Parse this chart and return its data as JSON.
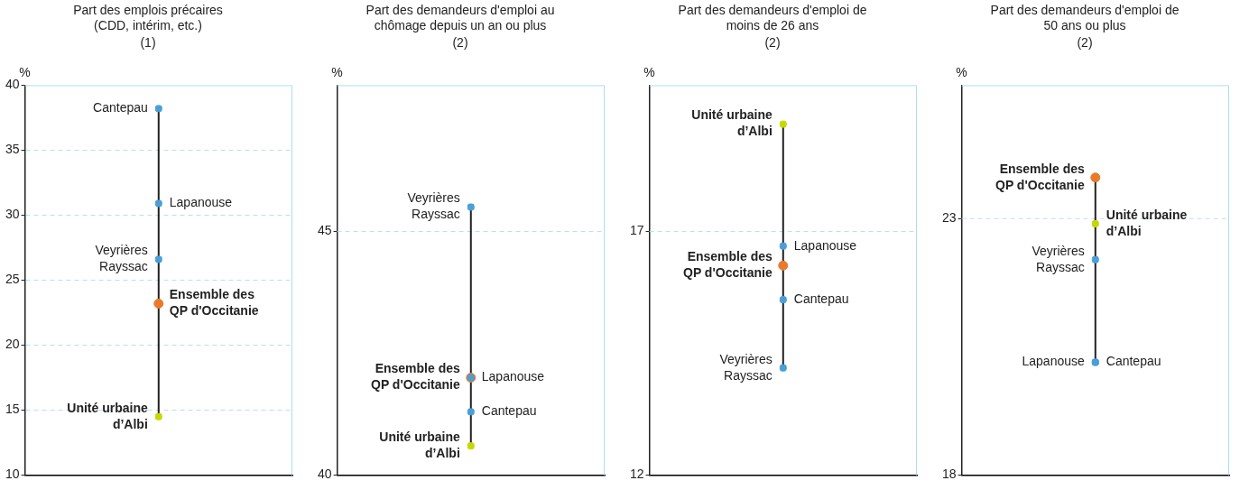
{
  "chart_data": [
    {
      "type": "scatter",
      "title": "Part des emplois précaires (CDD, intérim, etc.)",
      "subtitle": "(1)",
      "ylabel": "%",
      "categories": [
        null
      ],
      "ylim": [
        10,
        40
      ],
      "yticks": [
        10,
        15,
        20,
        25,
        30,
        35,
        40
      ],
      "grid": "y",
      "legend": false,
      "series": [
        {
          "name": "Cantepau",
          "color": "#4a9fd8",
          "marker": "square",
          "values": [
            38.2
          ]
        },
        {
          "name": "Lapanouse",
          "color": "#4a9fd8",
          "marker": "square",
          "values": [
            30.9
          ]
        },
        {
          "name": "Veyrières Rayssac",
          "color": "#4a9fd8",
          "marker": "square",
          "values": [
            26.6
          ]
        },
        {
          "name": "Ensemble des QP d'Occitanie",
          "color": "#e87a2c",
          "marker": "circle",
          "values": [
            23.2
          ]
        },
        {
          "name": "Unité urbaine d’Albi",
          "color": "#c5d900",
          "marker": "square",
          "values": [
            14.5
          ]
        }
      ]
    },
    {
      "type": "scatter",
      "title": "Part des demandeurs d'emploi au chômage depuis un an ou plus",
      "subtitle": "(2)",
      "ylabel": "%",
      "categories": [
        null
      ],
      "ylim": [
        40,
        48
      ],
      "yticks": [
        40,
        45
      ],
      "ref_lines": [
        {
          "axis": "y",
          "value": 45,
          "color": "#b9e0f2",
          "line_style": "dashed"
        }
      ],
      "legend": false,
      "series": [
        {
          "name": "Veyrières Rayssac",
          "color": "#4a9fd8",
          "marker": "square",
          "values": [
            45.5
          ]
        },
        {
          "name": "Lapanouse",
          "color": "#4a9fd8",
          "marker": "square",
          "values": [
            42.0
          ]
        },
        {
          "name": "Ensemble des QP d'Occitanie",
          "color": "#e87a2c",
          "marker": "circle",
          "values": [
            42.0
          ]
        },
        {
          "name": "Cantepau",
          "color": "#4a9fd8",
          "marker": "square",
          "values": [
            41.3
          ]
        },
        {
          "name": "Unité urbaine d’Albi",
          "color": "#c5d900",
          "marker": "square",
          "values": [
            40.6
          ]
        }
      ]
    },
    {
      "type": "scatter",
      "title": "Part des demandeurs d'emploi de moins de 26 ans",
      "subtitle": "(2)",
      "ylabel": "%",
      "categories": [
        null
      ],
      "ylim": [
        12,
        20
      ],
      "yticks": [
        12,
        17
      ],
      "ref_lines": [
        {
          "axis": "y",
          "value": 17,
          "color": "#b9e0f2",
          "line_style": "dashed"
        }
      ],
      "legend": false,
      "series": [
        {
          "name": "Unité urbaine d’Albi",
          "color": "#c5d900",
          "marker": "square",
          "values": [
            19.2
          ]
        },
        {
          "name": "Lapanouse",
          "color": "#4a9fd8",
          "marker": "square",
          "values": [
            16.7
          ]
        },
        {
          "name": "Ensemble des QP d'Occitanie",
          "color": "#e87a2c",
          "marker": "circle",
          "values": [
            16.3
          ]
        },
        {
          "name": "Cantepau",
          "color": "#4a9fd8",
          "marker": "square",
          "values": [
            15.6
          ]
        },
        {
          "name": "Veyrières Rayssac",
          "color": "#4a9fd8",
          "marker": "square",
          "values": [
            14.2
          ]
        }
      ]
    },
    {
      "type": "scatter",
      "title": "Part des demandeurs d'emploi de 50 ans ou plus",
      "subtitle": "(2)",
      "ylabel": "%",
      "categories": [
        null
      ],
      "ylim": [
        18,
        25.6
      ],
      "yticks": [
        18,
        23
      ],
      "ref_lines": [
        {
          "axis": "y",
          "value": 23,
          "color": "#b9e0f2",
          "line_style": "dashed"
        }
      ],
      "legend": false,
      "series": [
        {
          "name": "Ensemble des QP d'Occitanie",
          "color": "#e87a2c",
          "marker": "circle",
          "values": [
            23.8
          ]
        },
        {
          "name": "Unité urbaine d’Albi",
          "color": "#c5d900",
          "marker": "square",
          "values": [
            22.9
          ]
        },
        {
          "name": "Veyrières Rayssac",
          "color": "#4a9fd8",
          "marker": "square",
          "values": [
            22.2
          ]
        },
        {
          "name": "Cantepau",
          "color": "#4a9fd8",
          "marker": "square",
          "values": [
            20.2
          ]
        },
        {
          "name": "Lapanouse",
          "color": "#4a9fd8",
          "marker": "square",
          "values": [
            20.2
          ]
        }
      ]
    }
  ]
}
